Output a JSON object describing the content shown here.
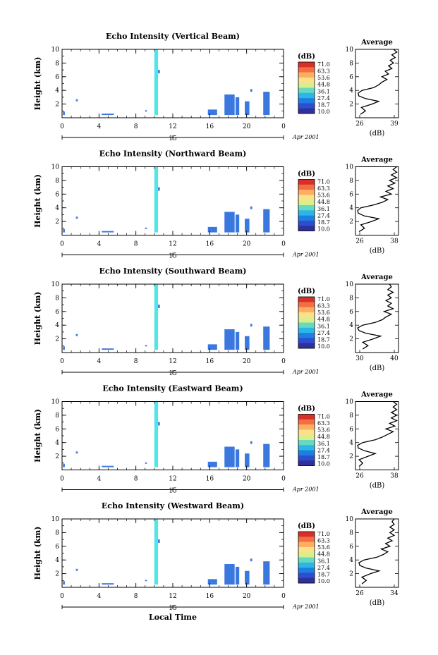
{
  "figure": {
    "xlabel": "Local Time",
    "colorbar_unit": "(dB)",
    "colorbar_ticks": [
      "71.0",
      "63.3",
      "53.6",
      "44.8",
      "36.1",
      "27.4",
      "18.7",
      "10.0"
    ],
    "colorbar_colors": [
      "#d73027",
      "#f46d43",
      "#fdae61",
      "#fee08b",
      "#d9ef8b",
      "#66d9c0",
      "#2ab7e8",
      "#1e7fe0",
      "#2b4fd0",
      "#30309a"
    ],
    "average_title": "Average",
    "average_xlabel": "(dB)",
    "date_label": "Apr 2001",
    "date_tick": "15",
    "echo_color": "#4fe6e6",
    "band_color": "#3a78e0"
  },
  "chart_data": [
    {
      "type": "heatmap",
      "title": "Echo Intensity (Vertical Beam)",
      "ylabel": "Height (km)",
      "xlim": [
        0,
        24
      ],
      "ylim": [
        0,
        10
      ],
      "xticks": [
        "0",
        "4",
        "8",
        "12",
        "16",
        "20",
        "0"
      ],
      "yticks": [
        "2",
        "4",
        "6",
        "8",
        "10"
      ],
      "average": {
        "xlim": [
          26,
          39
        ],
        "xticks": [
          "26",
          "39"
        ],
        "profile": [
          [
            27.5,
            0.5
          ],
          [
            29.0,
            1.0
          ],
          [
            27.8,
            1.5
          ],
          [
            31.0,
            2.0
          ],
          [
            33.0,
            2.4
          ],
          [
            29.0,
            2.8
          ],
          [
            27.0,
            3.2
          ],
          [
            26.8,
            3.6
          ],
          [
            28.0,
            4.0
          ],
          [
            31.5,
            4.4
          ],
          [
            33.0,
            4.8
          ],
          [
            34.0,
            5.2
          ],
          [
            35.5,
            5.6
          ],
          [
            34.0,
            6.0
          ],
          [
            36.0,
            6.4
          ],
          [
            35.0,
            6.8
          ],
          [
            37.0,
            7.2
          ],
          [
            36.0,
            7.6
          ],
          [
            37.5,
            8.0
          ],
          [
            36.5,
            8.4
          ],
          [
            38.0,
            8.8
          ],
          [
            37.0,
            9.2
          ],
          [
            38.5,
            9.6
          ],
          [
            37.5,
            10.0
          ]
        ]
      }
    },
    {
      "type": "heatmap",
      "title": "Echo Intensity (Northward Beam)",
      "ylabel": "Height (km)",
      "xlim": [
        0,
        24
      ],
      "ylim": [
        0,
        10
      ],
      "xticks": [
        "0",
        "4",
        "8",
        "12",
        "16",
        "20",
        "0"
      ],
      "yticks": [
        "2",
        "4",
        "6",
        "8",
        "10"
      ],
      "average": {
        "xlim": [
          26,
          38
        ],
        "xticks": [
          "26",
          "38"
        ],
        "profile": [
          [
            27.0,
            0.5
          ],
          [
            28.5,
            1.0
          ],
          [
            27.5,
            1.5
          ],
          [
            30.5,
            2.0
          ],
          [
            32.5,
            2.4
          ],
          [
            28.5,
            2.8
          ],
          [
            26.8,
            3.2
          ],
          [
            26.6,
            3.6
          ],
          [
            27.5,
            4.0
          ],
          [
            31.0,
            4.4
          ],
          [
            33.5,
            4.8
          ],
          [
            35.0,
            5.2
          ],
          [
            33.0,
            5.6
          ],
          [
            36.0,
            6.0
          ],
          [
            34.5,
            6.4
          ],
          [
            36.5,
            6.8
          ],
          [
            35.0,
            7.2
          ],
          [
            37.0,
            7.6
          ],
          [
            35.5,
            8.0
          ],
          [
            37.5,
            8.4
          ],
          [
            36.0,
            8.8
          ],
          [
            37.5,
            9.2
          ],
          [
            36.5,
            9.6
          ],
          [
            37.5,
            10.0
          ]
        ]
      }
    },
    {
      "type": "heatmap",
      "title": "Echo Intensity (Southward Beam)",
      "ylabel": "Height (km)",
      "xlim": [
        0,
        24
      ],
      "ylim": [
        0,
        10
      ],
      "xticks": [
        "0",
        "4",
        "8",
        "12",
        "16",
        "20",
        "0"
      ],
      "yticks": [
        "2",
        "4",
        "6",
        "8",
        "10"
      ],
      "average": {
        "xlim": [
          28,
          40
        ],
        "xticks": [
          "30",
          "40"
        ],
        "profile": [
          [
            30.0,
            0.5
          ],
          [
            31.5,
            1.0
          ],
          [
            30.0,
            1.5
          ],
          [
            33.0,
            2.0
          ],
          [
            35.0,
            2.4
          ],
          [
            31.0,
            2.8
          ],
          [
            29.0,
            3.2
          ],
          [
            28.6,
            3.6
          ],
          [
            30.0,
            4.0
          ],
          [
            33.5,
            4.4
          ],
          [
            35.5,
            4.8
          ],
          [
            36.5,
            5.2
          ],
          [
            38.0,
            5.6
          ],
          [
            36.0,
            6.0
          ],
          [
            38.5,
            6.4
          ],
          [
            37.0,
            6.8
          ],
          [
            38.0,
            7.2
          ],
          [
            36.5,
            7.6
          ],
          [
            38.0,
            8.0
          ],
          [
            37.0,
            8.4
          ],
          [
            38.5,
            8.8
          ],
          [
            37.0,
            9.2
          ],
          [
            38.0,
            9.6
          ],
          [
            37.5,
            10.0
          ]
        ]
      }
    },
    {
      "type": "heatmap",
      "title": "Echo Intensity (Eastward Beam)",
      "ylabel": "Height (km)",
      "xlim": [
        0,
        24
      ],
      "ylim": [
        0,
        10
      ],
      "xticks": [
        "0",
        "4",
        "8",
        "12",
        "16",
        "20",
        "0"
      ],
      "yticks": [
        "2",
        "4",
        "6",
        "8",
        "10"
      ],
      "average": {
        "xlim": [
          26,
          38
        ],
        "xticks": [
          "26",
          "38"
        ],
        "profile": [
          [
            27.0,
            0.5
          ],
          [
            28.0,
            1.0
          ],
          [
            27.0,
            1.5
          ],
          [
            29.5,
            2.0
          ],
          [
            31.5,
            2.4
          ],
          [
            28.5,
            2.8
          ],
          [
            26.8,
            3.2
          ],
          [
            26.6,
            3.6
          ],
          [
            28.0,
            4.0
          ],
          [
            31.5,
            4.4
          ],
          [
            33.5,
            4.8
          ],
          [
            35.0,
            5.2
          ],
          [
            36.5,
            5.6
          ],
          [
            34.5,
            6.0
          ],
          [
            37.0,
            6.4
          ],
          [
            35.5,
            6.8
          ],
          [
            37.5,
            7.2
          ],
          [
            36.0,
            7.6
          ],
          [
            37.5,
            8.0
          ],
          [
            36.0,
            8.4
          ],
          [
            37.5,
            8.8
          ],
          [
            36.5,
            9.2
          ],
          [
            37.5,
            9.6
          ],
          [
            36.5,
            10.0
          ]
        ]
      }
    },
    {
      "type": "heatmap",
      "title": "Echo Intensity (Westward Beam)",
      "ylabel": "Height (km)",
      "xlim": [
        0,
        24
      ],
      "ylim": [
        0,
        10
      ],
      "xticks": [
        "0",
        "4",
        "8",
        "12",
        "16",
        "20",
        "0"
      ],
      "yticks": [
        "2",
        "4",
        "6",
        "8",
        "10"
      ],
      "average": {
        "xlim": [
          25,
          35
        ],
        "xticks": [
          "26",
          "34"
        ],
        "profile": [
          [
            26.5,
            0.5
          ],
          [
            27.5,
            1.0
          ],
          [
            26.5,
            1.5
          ],
          [
            28.5,
            2.0
          ],
          [
            30.5,
            2.4
          ],
          [
            27.5,
            2.8
          ],
          [
            26.0,
            3.2
          ],
          [
            25.8,
            3.6
          ],
          [
            27.0,
            4.0
          ],
          [
            30.0,
            4.4
          ],
          [
            31.5,
            4.8
          ],
          [
            32.5,
            5.2
          ],
          [
            31.0,
            5.6
          ],
          [
            33.0,
            6.0
          ],
          [
            32.0,
            6.4
          ],
          [
            33.5,
            6.8
          ],
          [
            32.5,
            7.2
          ],
          [
            34.0,
            7.6
          ],
          [
            33.0,
            8.0
          ],
          [
            34.0,
            8.4
          ],
          [
            33.0,
            8.8
          ],
          [
            34.0,
            9.2
          ],
          [
            33.5,
            9.6
          ],
          [
            34.0,
            10.0
          ]
        ]
      }
    }
  ],
  "echo_regions": [
    [
      10.0,
      10.4,
      0.4,
      10.0,
      "main"
    ],
    [
      10.4,
      10.6,
      6.5,
      7.0,
      "band"
    ],
    [
      0.1,
      0.3,
      0.4,
      0.9,
      "band"
    ],
    [
      1.5,
      1.7,
      2.4,
      2.7,
      "band"
    ],
    [
      4.3,
      5.6,
      0.4,
      0.6,
      "band"
    ],
    [
      9.0,
      9.2,
      0.9,
      1.1,
      "band"
    ],
    [
      15.8,
      16.8,
      0.4,
      1.2,
      "band"
    ],
    [
      17.6,
      18.7,
      0.4,
      3.4,
      "band"
    ],
    [
      18.8,
      19.2,
      0.4,
      3.0,
      "band"
    ],
    [
      19.8,
      20.3,
      0.4,
      2.4,
      "band"
    ],
    [
      20.4,
      20.6,
      3.8,
      4.2,
      "band"
    ],
    [
      21.8,
      22.5,
      0.4,
      3.8,
      "band"
    ]
  ]
}
